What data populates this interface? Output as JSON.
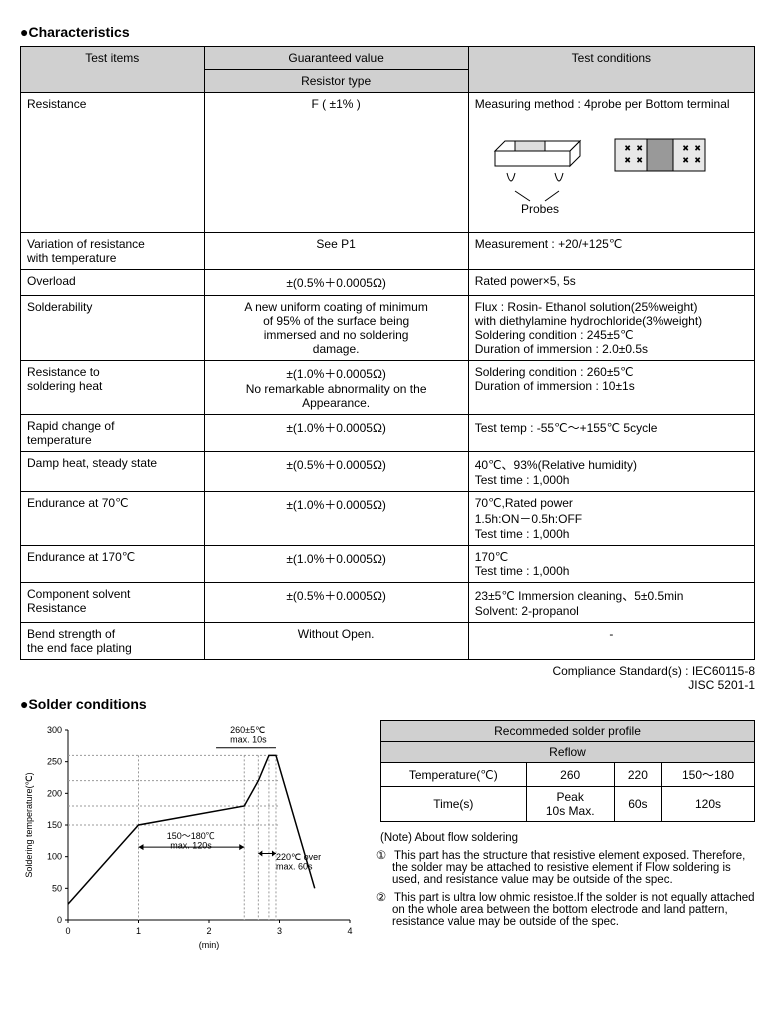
{
  "sections": {
    "characteristics_title": "●Characteristics",
    "solder_title": "●Solder conditions"
  },
  "table": {
    "headers": {
      "test_items": "Test items",
      "guaranteed_value": "Guaranteed value",
      "resistor_type": "Resistor type",
      "test_conditions": "Test conditions"
    },
    "col_widths": {
      "items": "25%",
      "value": "36%",
      "cond": "39%"
    },
    "rows": [
      {
        "item": "Resistance",
        "value": "F ( ±1% )",
        "cond_prefix": "Measuring method : 4probe per Bottom terminal",
        "has_diagram": true,
        "diagram": {
          "probes_label": "Probes"
        },
        "tall": true
      },
      {
        "item": "Variation of resistance\nwith temperature",
        "value": "See P1",
        "cond": "Measurement : +20/+125℃"
      },
      {
        "item": "Overload",
        "value": "±(0.5%＋0.0005Ω)",
        "cond": "Rated power×5, 5s"
      },
      {
        "item": "Solderability",
        "value": "A new uniform coating of minimum\nof 95% of the surface being\nimmersed and no soldering\ndamage.",
        "cond": "Flux : Rosin- Ethanol solution(25%weight)\nwith diethylamine hydrochloride(3%weight)\nSoldering condition : 245±5℃\nDuration of immersion : 2.0±0.5s"
      },
      {
        "item": "Resistance to\nsoldering heat",
        "value": "±(1.0%＋0.0005Ω)\nNo remarkable abnormality on the Appearance.",
        "cond": "Soldering condition : 260±5℃\nDuration of immersion : 10±1s"
      },
      {
        "item": "Rapid change of\ntemperature",
        "value": "±(1.0%＋0.0005Ω)",
        "cond": "Test temp : -55℃～+155℃ 5cycle"
      },
      {
        "item": "Damp heat, steady state",
        "value": "±(0.5%＋0.0005Ω)",
        "cond": "40℃、93%(Relative humidity)\nTest time : 1,000h"
      },
      {
        "item": "Endurance at 70℃",
        "value": "±(1.0%＋0.0005Ω)",
        "cond": "70℃,Rated power\n1.5h:ON－0.5h:OFF\nTest time : 1,000h"
      },
      {
        "item": "Endurance at 170℃",
        "value": "±(1.0%＋0.0005Ω)",
        "cond": "170℃\nTest time : 1,000h"
      },
      {
        "item": "Component solvent\nResistance",
        "value": "±(0.5%＋0.0005Ω)",
        "cond": "23±5℃ Immersion cleaning、5±0.5min\nSolvent: 2-propanol"
      },
      {
        "item": "Bend strength of\nthe end face plating",
        "value": "Without Open.",
        "cond": "-"
      }
    ]
  },
  "compliance": {
    "line1": "Compliance Standard(s) : IEC60115-8",
    "line2": "JISC 5201-1"
  },
  "chart": {
    "type": "line",
    "xlabel": "(min)",
    "ylabel": "Soldering temperature(℃)",
    "x_ticks": [
      0,
      1,
      2,
      3,
      4
    ],
    "y_ticks": [
      0,
      50,
      100,
      150,
      200,
      250,
      300
    ],
    "xlim": [
      0,
      4
    ],
    "ylim": [
      0,
      300
    ],
    "points": [
      {
        "x": 0,
        "y": 25
      },
      {
        "x": 1,
        "y": 150
      },
      {
        "x": 2.5,
        "y": 180
      },
      {
        "x": 2.7,
        "y": 220
      },
      {
        "x": 2.85,
        "y": 260
      },
      {
        "x": 2.95,
        "y": 260
      },
      {
        "x": 3.5,
        "y": 50
      }
    ],
    "annotations": {
      "peak": "260±5℃\nmax. 10s",
      "preheat": "150～180℃\nmax. 120s",
      "over220": "220℃ over\nmax. 60s"
    },
    "colors": {
      "line": "#000000",
      "axis": "#000000",
      "grid": "#999999",
      "background": "#ffffff"
    },
    "font_size": 9
  },
  "profile": {
    "title": "Recommeded solder profile",
    "subtitle": "Reflow",
    "rows": [
      {
        "label": "Temperature(℃)",
        "c1": "260",
        "c2": "220",
        "c3": "150～180"
      },
      {
        "label": "Time(s)",
        "c1": "Peak\n10s Max.",
        "c2": "60s",
        "c3": "120s"
      }
    ]
  },
  "notes": {
    "title": "(Note) About flow soldering",
    "items": [
      "This part has the structure that resistive element exposed. Therefore, the solder may be attached to resistive element if Flow soldering is used, and resistance value may be outside of the spec.",
      "This part is ultra low ohmic resistoe.If the solder is not equally attached on the whole area between the bottom electrode and land pattern, resistance value may be outside of the spec."
    ],
    "markers": [
      "①",
      "②"
    ]
  }
}
